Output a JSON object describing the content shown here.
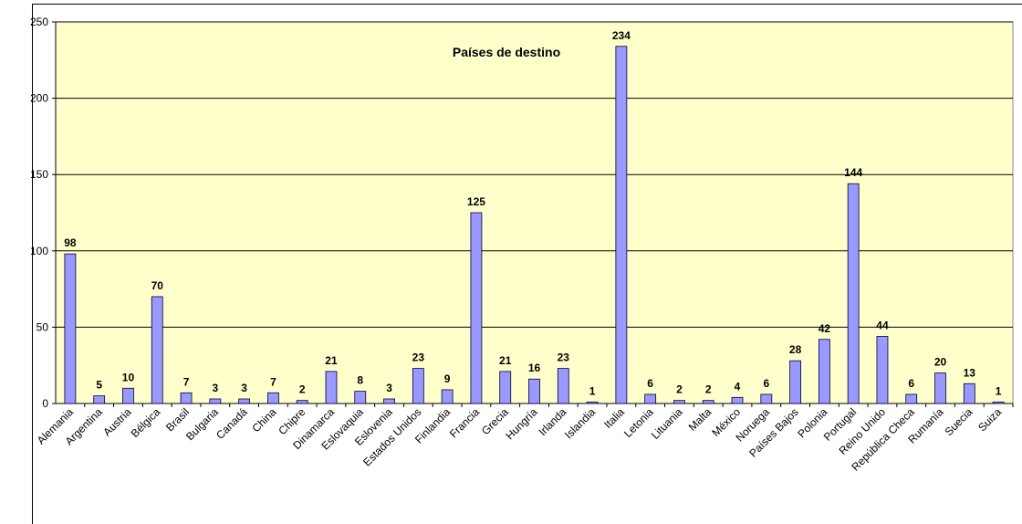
{
  "chart_data": {
    "type": "bar",
    "title": "Países de destino",
    "categories": [
      "Alemania",
      "Argentina",
      "Austria",
      "Bélgica",
      "Brasil",
      "Bulgaria",
      "Canadá",
      "China",
      "Chipre",
      "Dinamarca",
      "Eslovaquia",
      "Eslovenia",
      "Estados Unidos",
      "Finlandia",
      "Francia",
      "Grecia",
      "Hungría",
      "Irlanda",
      "Islandia",
      "Italia",
      "Letonia",
      "Lituania",
      "Malta",
      "México",
      "Noruega",
      "Países Bajos",
      "Polonia",
      "Portugal",
      "Reino Unido",
      "República Checa",
      "Rumanía",
      "Suecia",
      "Suiza"
    ],
    "values": [
      98,
      5,
      10,
      70,
      7,
      3,
      3,
      7,
      2,
      21,
      8,
      3,
      23,
      9,
      125,
      21,
      16,
      23,
      1,
      234,
      6,
      2,
      2,
      4,
      6,
      28,
      42,
      144,
      44,
      6,
      20,
      13,
      1
    ],
    "color": "#9999ff",
    "ylim": [
      0,
      250
    ],
    "yticks": [
      0,
      50,
      100,
      150,
      200,
      250
    ],
    "grid": true
  }
}
